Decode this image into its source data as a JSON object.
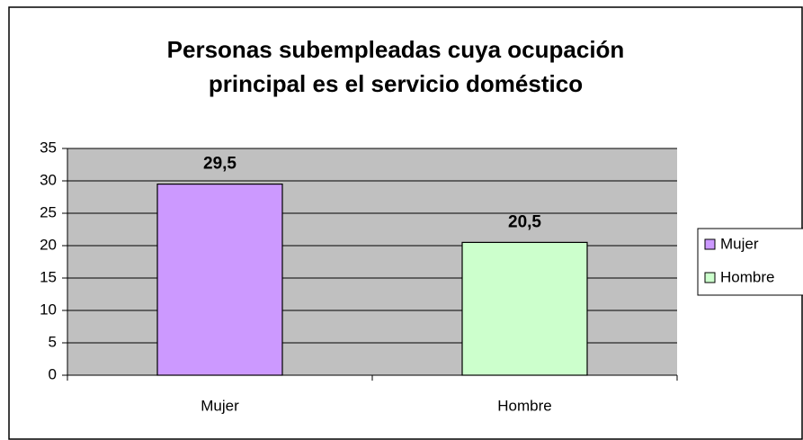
{
  "chart_data": {
    "type": "bar",
    "title": "Personas subempleadas cuya ocupación principal es el servicio doméstico",
    "categories": [
      "Mujer",
      "Hombre"
    ],
    "series": [
      {
        "name": "Mujer",
        "color": "#cc99ff",
        "values": [
          29.5,
          null
        ],
        "value_labels": [
          "29,5",
          null
        ]
      },
      {
        "name": "Hombre",
        "color": "#ccffcc",
        "values": [
          null,
          20.5
        ],
        "value_labels": [
          null,
          "20,5"
        ]
      }
    ],
    "ylim": [
      0,
      35
    ],
    "yticks": [
      0,
      5,
      10,
      15,
      20,
      25,
      30,
      35
    ],
    "grid": true,
    "legend": "right"
  }
}
